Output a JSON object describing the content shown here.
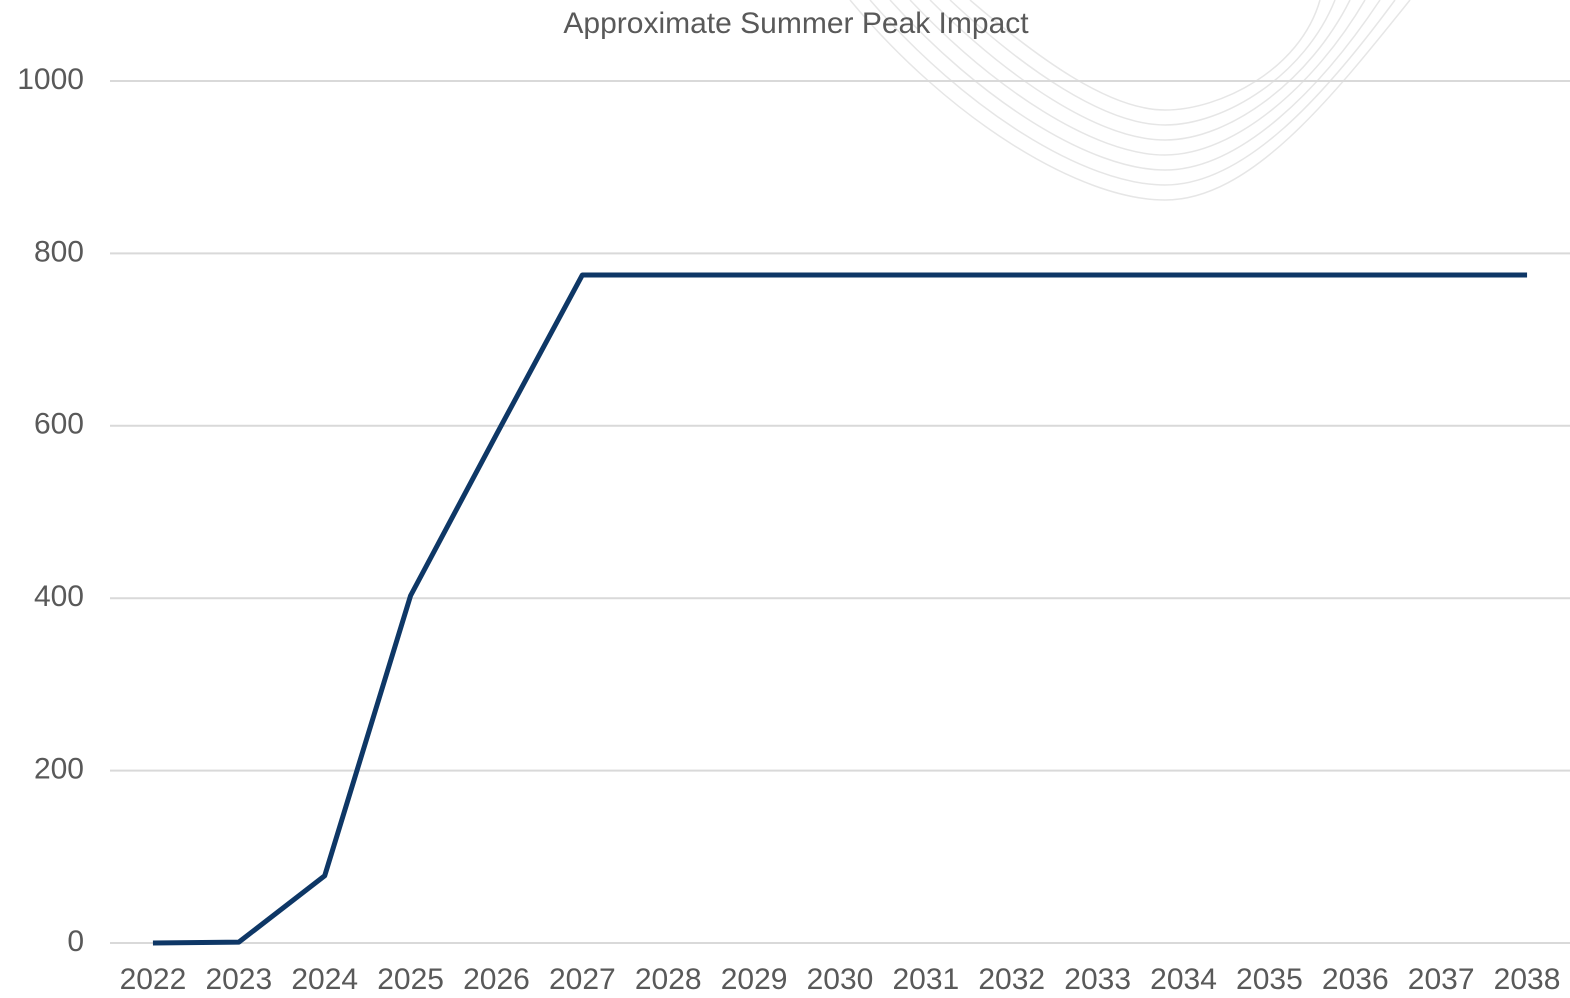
{
  "chart_data": {
    "type": "line",
    "title": "Approximate Summer Peak Impact",
    "categories": [
      "2022",
      "2023",
      "2024",
      "2025",
      "2026",
      "2027",
      "2028",
      "2029",
      "2030",
      "2031",
      "2032",
      "2033",
      "2034",
      "2035",
      "2036",
      "2037",
      "2038"
    ],
    "values": [
      0,
      1,
      78,
      403,
      590,
      775,
      775,
      775,
      775,
      775,
      775,
      775,
      775,
      775,
      775,
      775,
      775
    ],
    "color": "#0e3766",
    "ylim": [
      0,
      1000
    ],
    "yticks": [
      0,
      200,
      400,
      600,
      800,
      1000
    ],
    "grid": true
  }
}
